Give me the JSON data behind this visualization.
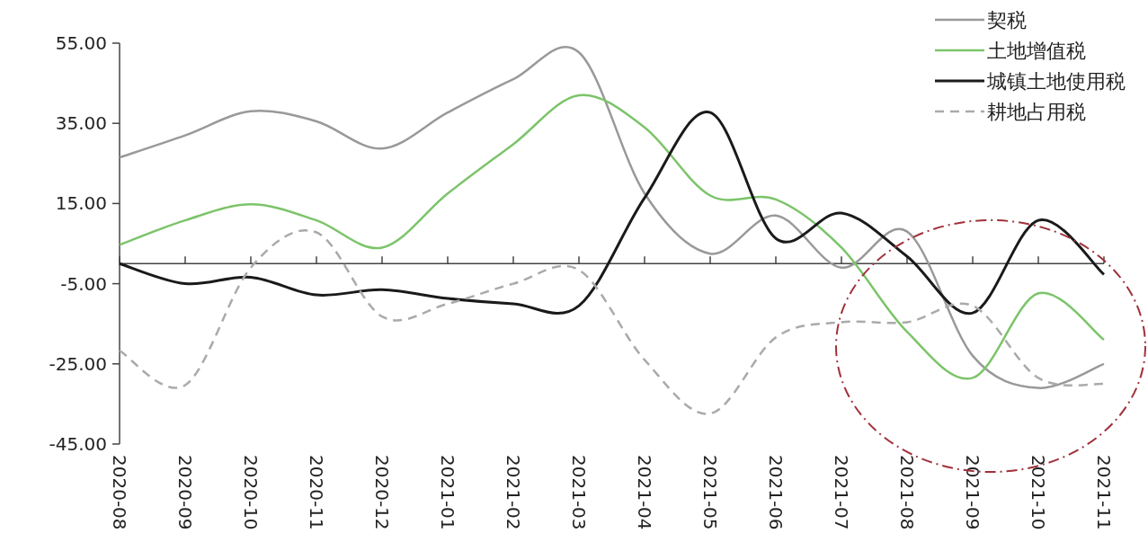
{
  "chart_data": {
    "type": "line",
    "categories": [
      "2020-08",
      "2020-09",
      "2020-10",
      "2020-11",
      "2020-12",
      "2021-01",
      "2021-02",
      "2021-03",
      "2021-04",
      "2021-05",
      "2021-06",
      "2021-07",
      "2021-08",
      "2021-09",
      "2021-10",
      "2021-11"
    ],
    "series": [
      {
        "name": "契税",
        "color": "#999999",
        "values": [
          26.5,
          32,
          38,
          35.5,
          28.7,
          37.7,
          46,
          52.7,
          17.5,
          2.5,
          12,
          -1,
          8,
          -23,
          -31,
          -25
        ]
      },
      {
        "name": "土地增值税",
        "color": "#7cc46a",
        "values": [
          4.7,
          10.8,
          14.8,
          10.8,
          4,
          17.5,
          29.8,
          42,
          34,
          17,
          16,
          4,
          -17,
          -28.5,
          -7.4,
          -19
        ]
      },
      {
        "name": "城镇土地使用税",
        "color": "#1a1a1a",
        "values": [
          0,
          -5,
          -3.4,
          -7.8,
          -6.5,
          -8.7,
          -10,
          -10.5,
          16.4,
          37.7,
          6.3,
          12.6,
          1.8,
          -12.3,
          10.8,
          -2.7
        ]
      },
      {
        "name": "耕地占用税",
        "color": "#aaaaaa",
        "line_style": "dashed",
        "values": [
          -21.7,
          -30.3,
          -1,
          7.8,
          -13.2,
          -10,
          -5,
          -1.6,
          -24,
          -37.4,
          -18.4,
          -14.6,
          -14.6,
          -10.5,
          -28.5,
          -30
        ]
      }
    ],
    "ylim": [
      -45,
      55
    ],
    "yticks": [
      {
        "value": -45,
        "label": "-45.00"
      },
      {
        "value": -25,
        "label": "-25.00"
      },
      {
        "value": -5,
        "label": "-5.00"
      },
      {
        "value": 15,
        "label": "15.00"
      },
      {
        "value": 35,
        "label": "35.00"
      },
      {
        "value": 55,
        "label": "55.00"
      }
    ],
    "grid": false,
    "legend": "top right"
  }
}
